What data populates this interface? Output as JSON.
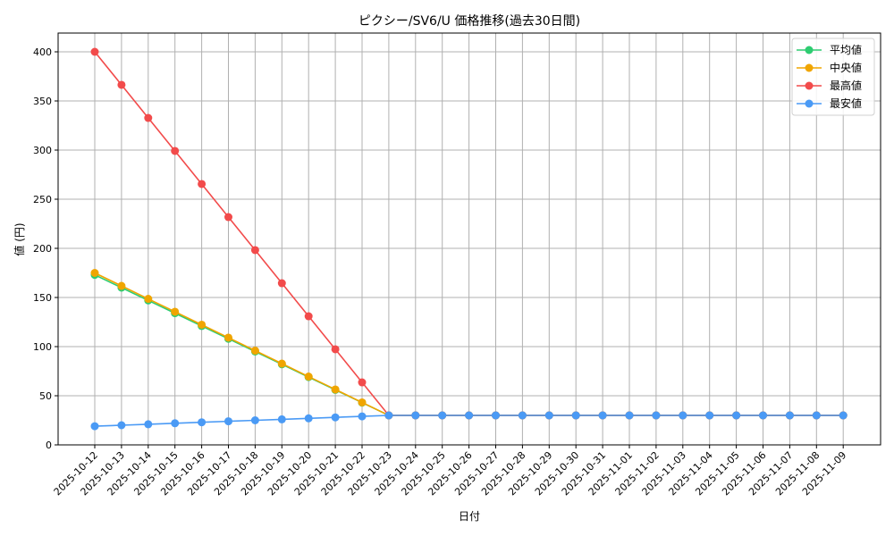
{
  "chart_data": {
    "type": "line",
    "title": "ピクシー/SV6/U 価格推移(過去30日間)",
    "xlabel": "日付",
    "ylabel": "値 (円)",
    "ylim": [
      0,
      420
    ],
    "yticks": [
      0,
      50,
      100,
      150,
      200,
      250,
      300,
      350,
      400
    ],
    "grid": true,
    "legend_position": "upper right",
    "categories": [
      "2025-10-12",
      "2025-10-13",
      "2025-10-14",
      "2025-10-15",
      "2025-10-16",
      "2025-10-17",
      "2025-10-18",
      "2025-10-19",
      "2025-10-20",
      "2025-10-21",
      "2025-10-22",
      "2025-10-23",
      "2025-10-24",
      "2025-10-25",
      "2025-10-26",
      "2025-10-27",
      "2025-10-28",
      "2025-10-29",
      "2025-10-30",
      "2025-10-31",
      "2025-11-01",
      "2025-11-02",
      "2025-11-03",
      "2025-11-04",
      "2025-11-05",
      "2025-11-06",
      "2025-11-07",
      "2025-11-08",
      "2025-11-09"
    ],
    "series": [
      {
        "name": "平均値",
        "color": "#2ecc71",
        "values": [
          173,
          160,
          147,
          134,
          121,
          108,
          95,
          82,
          69,
          56,
          43,
          30,
          30,
          30,
          30,
          30,
          30,
          30,
          30,
          30,
          30,
          30,
          30,
          30,
          30,
          30,
          30,
          30,
          30
        ]
      },
      {
        "name": "中央値",
        "color": "#f0a500",
        "values": [
          175,
          161.8,
          148.6,
          135.5,
          122.3,
          109.1,
          95.9,
          82.7,
          69.5,
          56.4,
          43.2,
          30,
          30,
          30,
          30,
          30,
          30,
          30,
          30,
          30,
          30,
          30,
          30,
          30,
          30,
          30,
          30,
          30,
          30
        ]
      },
      {
        "name": "最高値",
        "color": "#f24b4b",
        "values": [
          400,
          366.4,
          332.7,
          299.1,
          265.5,
          231.8,
          198.2,
          164.5,
          130.9,
          97.3,
          63.6,
          30,
          30,
          30,
          30,
          30,
          30,
          30,
          30,
          30,
          30,
          30,
          30,
          30,
          30,
          30,
          30,
          30,
          30
        ]
      },
      {
        "name": "最安値",
        "color": "#4a9af5",
        "values": [
          19,
          20,
          21,
          22,
          23,
          24,
          25,
          26,
          27,
          28,
          29,
          30,
          30,
          30,
          30,
          30,
          30,
          30,
          30,
          30,
          30,
          30,
          30,
          30,
          30,
          30,
          30,
          30,
          30
        ]
      }
    ]
  }
}
